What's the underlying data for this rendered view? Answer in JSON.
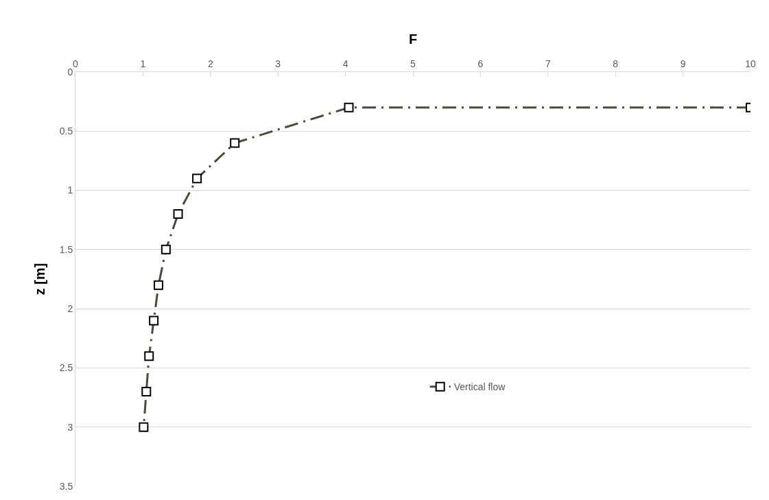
{
  "chart_data": {
    "type": "line",
    "xlabel": "F",
    "ylabel": "z [m]",
    "series": [
      {
        "name": "Vertical flow",
        "color": "#4f4a33",
        "x": [
          10,
          4.05,
          2.36,
          1.8,
          1.52,
          1.34,
          1.23,
          1.16,
          1.09,
          1.05,
          1.01
        ],
        "values": [
          0.3,
          0.3,
          0.6,
          0.9,
          1.2,
          1.5,
          1.8,
          2.1,
          2.4,
          2.7,
          3.0
        ]
      }
    ],
    "xlim": [
      0,
      10
    ],
    "xticks": [
      0,
      1,
      2,
      3,
      4,
      5,
      6,
      7,
      8,
      9,
      10
    ],
    "ylim": [
      3.5,
      0
    ],
    "yticks": [
      0,
      0.5,
      1,
      1.5,
      2,
      2.5,
      3,
      3.5
    ],
    "grid": "y",
    "legend": "bottom right",
    "marker": "square",
    "line_style": "dashed"
  }
}
